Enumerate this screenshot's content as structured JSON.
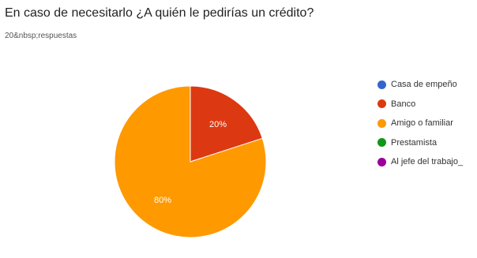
{
  "title": "En caso de necesitarlo ¿A quién le pedirías un crédito?",
  "subtitle": "20&nbsp;respuestas",
  "chart_data": {
    "type": "pie",
    "categories": [
      "Casa de empeño",
      "Banco",
      "Amigo o familiar",
      "Prestamista",
      "Al jefe del trabajo_"
    ],
    "values": [
      0,
      20,
      80,
      0,
      0
    ],
    "slice_labels": [
      "",
      "20%",
      "80%",
      "",
      ""
    ],
    "colors": [
      "#3366cc",
      "#dc3912",
      "#ff9900",
      "#109618",
      "#990099"
    ],
    "legend_position": "right"
  }
}
